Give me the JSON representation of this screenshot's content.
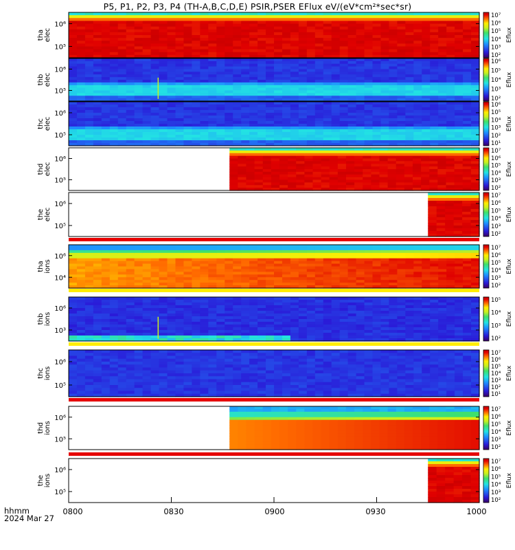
{
  "title": "P5, P1, P2, P3, P4 (TH-A,B,C,D,E) PSIR,PSER EFlux eV/(eV*cm²*sec*sr)",
  "footer": {
    "line1": "hhmm",
    "line2": "2024 Mar 27"
  },
  "x_ticks": [
    "0800",
    "0830",
    "0900",
    "0930",
    "1000"
  ],
  "chart_data": [
    {
      "type": "heatmap",
      "probe": "tha",
      "species": "elec",
      "ylabel": "tha\nelec",
      "yticks": [
        "10⁶",
        "10⁵"
      ],
      "cbar_label": "Eflux",
      "cbar_ticks": [
        "10⁷",
        "10⁶",
        "10⁵",
        "10⁴",
        "10³",
        "10²"
      ],
      "data_start": "0800",
      "data_end": "1000",
      "pattern": "hot"
    },
    {
      "type": "heatmap",
      "probe": "thb",
      "species": "elec",
      "ylabel": "thb\nelec",
      "yticks": [
        "10⁶",
        "10⁵"
      ],
      "cbar_label": "Eflux",
      "cbar_ticks": [
        "10⁶",
        "10⁵",
        "10⁴",
        "10³",
        "10²"
      ],
      "data_start": "0800",
      "data_end": "1000",
      "pattern": "cool"
    },
    {
      "type": "heatmap",
      "probe": "thc",
      "species": "elec",
      "ylabel": "thc\nelec",
      "yticks": [
        "10⁶",
        "10⁵"
      ],
      "cbar_label": "Eflux",
      "cbar_ticks": [
        "10⁶",
        "10⁵",
        "10⁴",
        "10³",
        "10²",
        "10¹"
      ],
      "data_start": "0800",
      "data_end": "1000",
      "pattern": "cool"
    },
    {
      "type": "heatmap",
      "probe": "thd",
      "species": "elec",
      "ylabel": "thd\nelec",
      "yticks": [
        "10⁶",
        "10⁵"
      ],
      "cbar_label": "Eflux",
      "cbar_ticks": [
        "10⁷",
        "10⁶",
        "10⁵",
        "10⁴",
        "10³",
        "10²"
      ],
      "data_start": "0847",
      "data_end": "1000",
      "pattern": "hot"
    },
    {
      "type": "heatmap",
      "probe": "the",
      "species": "elec",
      "ylabel": "the\nelec",
      "yticks": [
        "10⁶",
        "10⁵"
      ],
      "cbar_label": "Eflux",
      "cbar_ticks": [
        "10⁷",
        "10⁶",
        "10⁵",
        "10⁴",
        "10³",
        "10²"
      ],
      "data_start": "0945",
      "data_end": "1000",
      "pattern": "hot"
    },
    {
      "type": "heatmap",
      "probe": "tha",
      "species": "ions",
      "ylabel": "tha\nions",
      "yticks": [
        "10⁶",
        "10⁴"
      ],
      "cbar_label": "Eflux",
      "cbar_ticks": [
        "10⁷",
        "10⁶",
        "10⁵",
        "10⁴",
        "10³",
        "10²"
      ],
      "data_start": "0800",
      "data_end": "1000",
      "pattern": "ionhot"
    },
    {
      "type": "heatmap",
      "probe": "thb",
      "species": "ions",
      "ylabel": "thb\nions",
      "yticks": [
        "10⁶",
        "10³"
      ],
      "cbar_label": "Eflux",
      "cbar_ticks": [
        "10⁵",
        "10⁴",
        "10³",
        "10²"
      ],
      "data_start": "0800",
      "data_end": "1000",
      "pattern": "ioncool"
    },
    {
      "type": "heatmap",
      "probe": "thc",
      "species": "ions",
      "ylabel": "thc\nions",
      "yticks": [
        "10⁶",
        "10⁵"
      ],
      "cbar_label": "Eflux",
      "cbar_ticks": [
        "10⁷",
        "10⁶",
        "10⁵",
        "10⁴",
        "10³",
        "10²",
        "10¹"
      ],
      "data_start": "0800",
      "data_end": "1000",
      "pattern": "ioncool2"
    },
    {
      "type": "heatmap",
      "probe": "thd",
      "species": "ions",
      "ylabel": "thd\nions",
      "yticks": [
        "10⁶",
        "10⁵"
      ],
      "cbar_label": "Eflux",
      "cbar_ticks": [
        "10⁷",
        "10⁶",
        "10⁵",
        "10⁴",
        "10³",
        "10²"
      ],
      "data_start": "0847",
      "data_end": "1000",
      "pattern": "ionmid"
    },
    {
      "type": "heatmap",
      "probe": "the",
      "species": "ions",
      "ylabel": "the\nions",
      "yticks": [
        "10⁶",
        "10⁵"
      ],
      "cbar_label": "Eflux",
      "cbar_ticks": [
        "10⁷",
        "10⁶",
        "10⁵",
        "10⁴",
        "10³",
        "10²"
      ],
      "data_start": "0945",
      "data_end": "1000",
      "pattern": "hot"
    }
  ]
}
